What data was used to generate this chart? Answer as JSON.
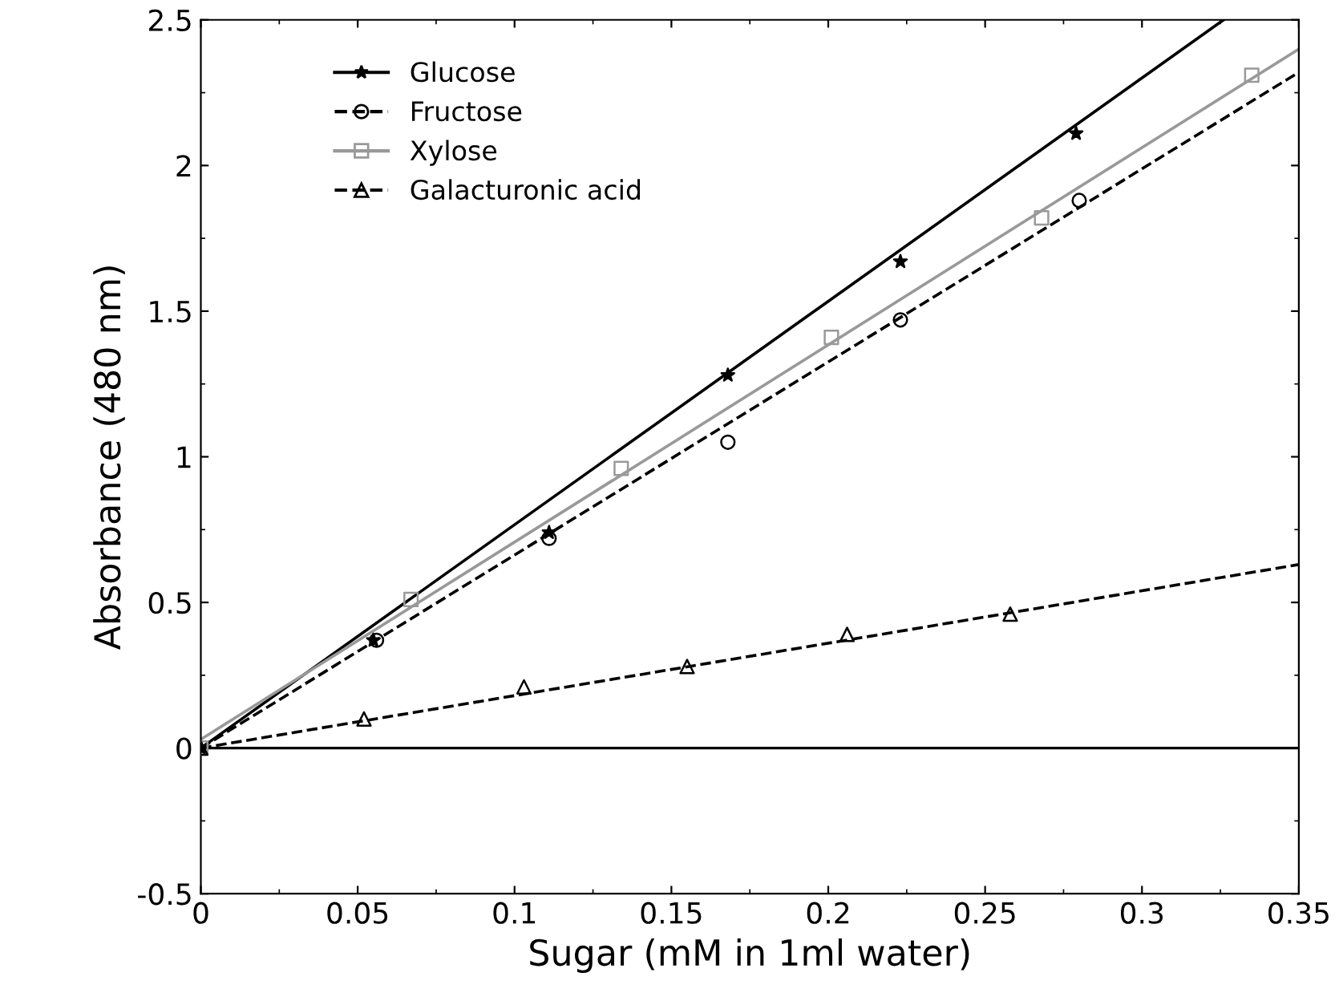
{
  "chart_data": {
    "type": "scatter",
    "xlabel": "Sugar (mM in 1ml water)",
    "ylabel": "Absorbance (480 nm)",
    "xlim": [
      0,
      0.35
    ],
    "ylim": [
      -0.5,
      2.5
    ],
    "xticks": [
      0,
      0.05,
      0.1,
      0.15,
      0.2,
      0.25,
      0.3,
      0.35
    ],
    "yticks": [
      -0.5,
      0,
      0.5,
      1,
      1.5,
      2,
      2.5
    ],
    "grid": false,
    "legend": "top left",
    "ref_lines": [
      {
        "axis": "y",
        "value": 0,
        "color": "#000000",
        "line_style": "solid"
      }
    ],
    "series": [
      {
        "name": "Glucose",
        "color": "#000000",
        "marker": "star",
        "line_style": "solid",
        "x": [
          0,
          0.055,
          0.111,
          0.168,
          0.223,
          0.279
        ],
        "values": [
          0,
          0.37,
          0.74,
          1.28,
          1.67,
          2.11
        ]
      },
      {
        "name": "Fructose",
        "color": "#000000",
        "marker": "circle",
        "line_style": "dashed",
        "x": [
          0.056,
          0.111,
          0.168,
          0.223,
          0.28
        ],
        "values": [
          0.37,
          0.72,
          1.05,
          1.47,
          1.88
        ]
      },
      {
        "name": "Xylose",
        "color": "#999999",
        "marker": "square",
        "line_style": "solid",
        "x": [
          0,
          0.067,
          0.134,
          0.201,
          0.268,
          0.335
        ],
        "values": [
          0,
          0.51,
          0.96,
          1.41,
          1.82,
          2.31
        ]
      },
      {
        "name": "Galacturonic acid",
        "color": "#000000",
        "marker": "triangle",
        "line_style": "dashed",
        "x": [
          0,
          0.052,
          0.103,
          0.155,
          0.206,
          0.258
        ],
        "values": [
          0,
          0.1,
          0.21,
          0.28,
          0.39,
          0.46
        ]
      },
      {
        "type": "line",
        "color": "#000000",
        "line_style": "solid",
        "x": [
          0,
          0.326
        ],
        "values": [
          0,
          2.5
        ]
      },
      {
        "type": "line",
        "color": "#000000",
        "line_style": "dashed",
        "x": [
          0,
          0.35
        ],
        "values": [
          0,
          2.32
        ]
      },
      {
        "type": "line",
        "color": "#999999",
        "line_style": "solid",
        "x": [
          0,
          0.35
        ],
        "values": [
          0.03,
          2.4
        ]
      },
      {
        "type": "line",
        "color": "#000000",
        "line_style": "dashed",
        "x": [
          0,
          0.35
        ],
        "values": [
          0,
          0.63
        ]
      }
    ]
  }
}
